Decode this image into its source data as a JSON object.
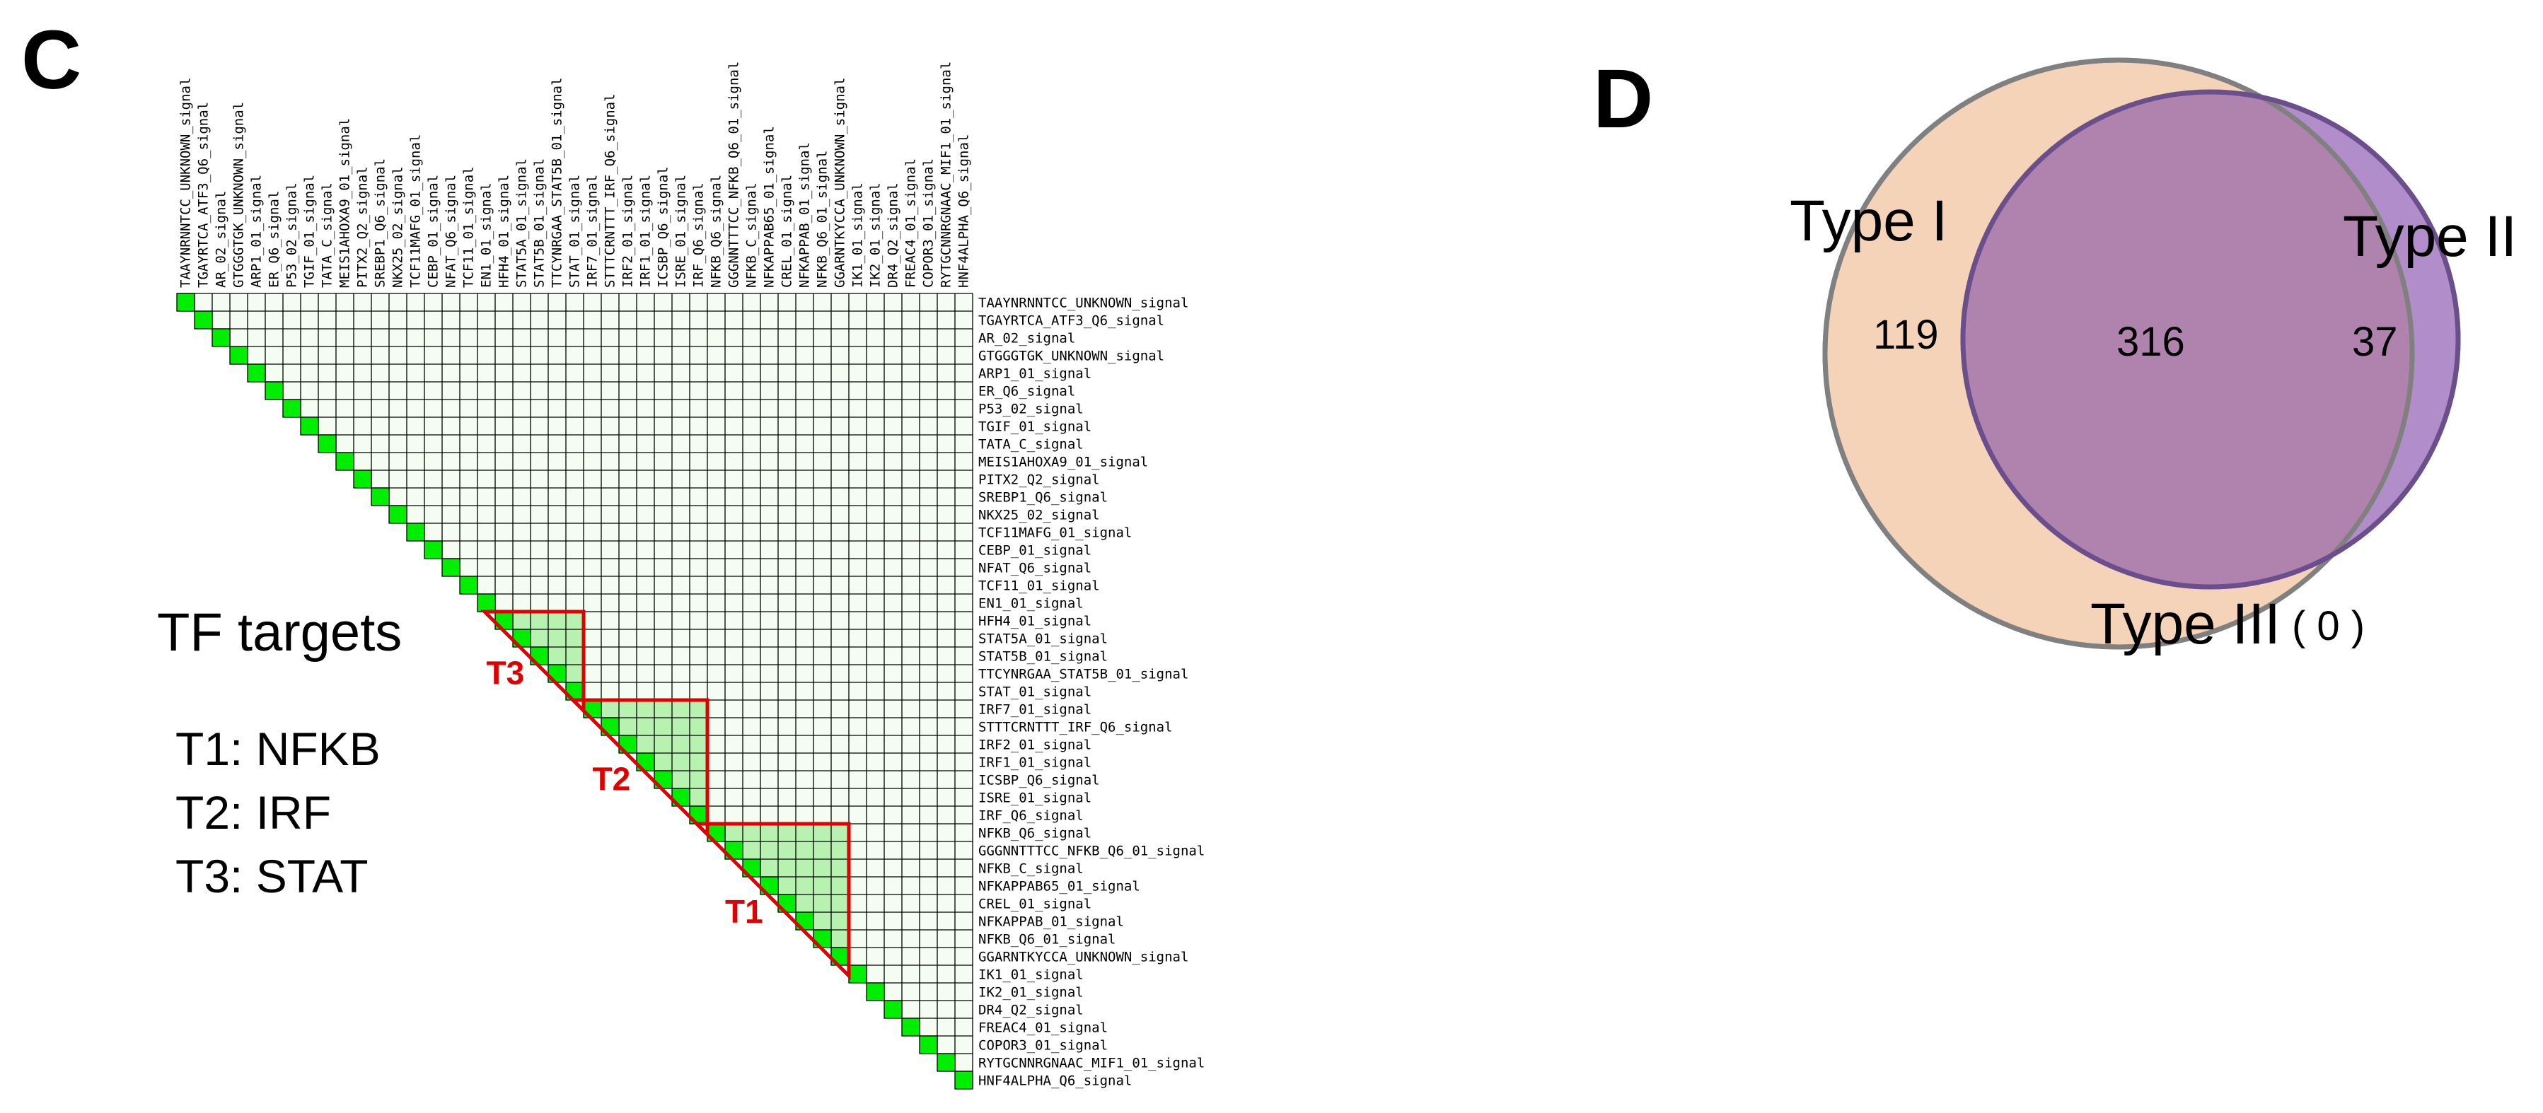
{
  "panel_c": {
    "letter": "C",
    "tf_labels": [
      "TAAYNRNNTCC_UNKNOWN_signal",
      "TGAYRTCA_ATF3_Q6_signal",
      "AR_02_signal",
      "GTGGGTGK_UNKNOWN_signal",
      "ARP1_01_signal",
      "ER_Q6_signal",
      "P53_02_signal",
      "TGIF_01_signal",
      "TATA_C_signal",
      "MEIS1AHOXA9_01_signal",
      "PITX2_Q2_signal",
      "SREBP1_Q6_signal",
      "NKX25_02_signal",
      "TCF11MAFG_01_signal",
      "CEBP_01_signal",
      "NFAT_Q6_signal",
      "TCF11_01_signal",
      "EN1_01_signal",
      "HFH4_01_signal",
      "STAT5A_01_signal",
      "STAT5B_01_signal",
      "TTCYNRGAA_STAT5B_01_signal",
      "STAT_01_signal",
      "IRF7_01_signal",
      "STTTCRNTTT_IRF_Q6_signal",
      "IRF2_01_signal",
      "IRF1_01_signal",
      "ICSBP_Q6_signal",
      "ISRE_01_signal",
      "IRF_Q6_signal",
      "NFKB_Q6_signal",
      "GGGNNTTTCC_NFKB_Q6_01_signal",
      "NFKB_C_signal",
      "NFKAPPAB65_01_signal",
      "CREL_01_signal",
      "NFKAPPAB_01_signal",
      "NFKB_Q6_01_signal",
      "GGARNTKYCCA_UNKNOWN_signal",
      "IK1_01_signal",
      "IK2_01_signal",
      "DR4_Q2_signal",
      "FREAC4_01_signal",
      "COPOR3_01_signal",
      "RYTGCNNRGNAAC_MIF1_01_signal",
      "HNF4ALPHA_Q6_signal"
    ],
    "legend_title": "TF targets",
    "legend_items": [
      "T1: NFKB",
      "T2: IRF",
      "T3: STAT"
    ],
    "regions": [
      {
        "label": "T1",
        "first_index": 30,
        "last_index": 37
      },
      {
        "label": "T2",
        "first_index": 23,
        "last_index": 29
      },
      {
        "label": "T3",
        "first_index": 18,
        "last_index": 22
      }
    ],
    "colors": {
      "diagonal": "#00ee00",
      "cluster_fill": "#b8f2b0",
      "grid_line": "#000000",
      "region_outline": "#e00000"
    }
  },
  "panel_d": {
    "letter": "D",
    "sets": [
      {
        "name": "Type I",
        "exclusive_count": "119",
        "color": "#f5d3b8"
      },
      {
        "name": "Type II",
        "exclusive_count": "37",
        "color": "#b18ec9"
      }
    ],
    "intersection_count": "316",
    "intersection_color": "#b082ae",
    "outline_color": "#808080",
    "type3_label": "Type III",
    "type3_count": "( 0 )"
  }
}
